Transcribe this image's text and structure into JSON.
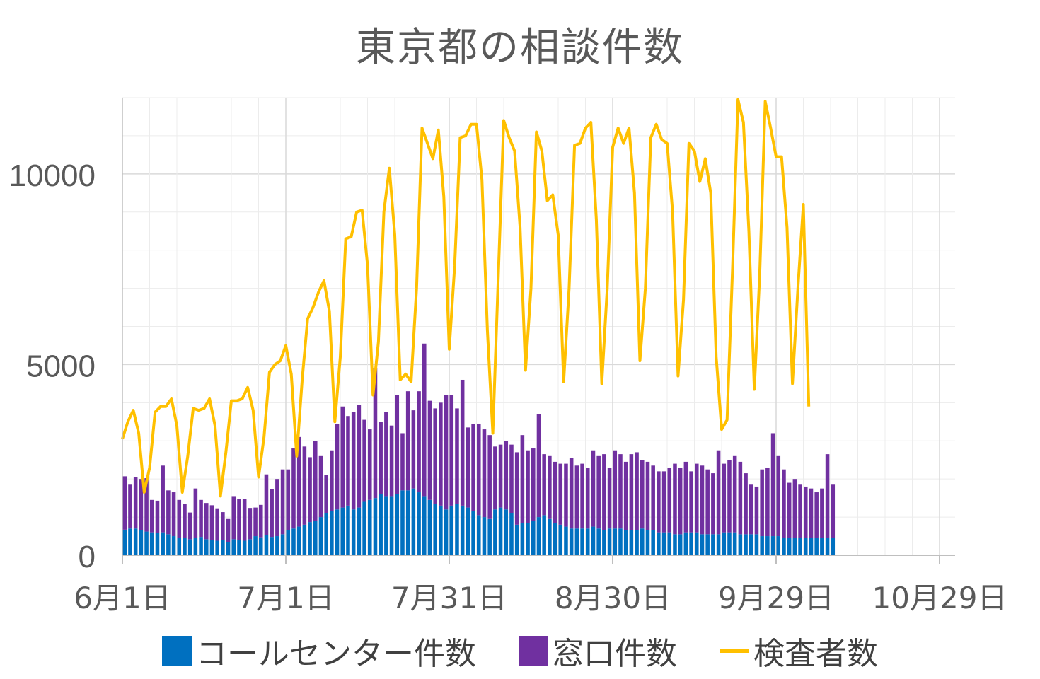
{
  "chart_data": {
    "type": "bar",
    "title": "東京都の相談件数",
    "xlabel": "",
    "ylabel": "",
    "ylim": [
      0,
      12000
    ],
    "y_ticks": [
      "0",
      "5000",
      "10000"
    ],
    "x_tick_labels": [
      "6月1日",
      "7月1日",
      "7月31日",
      "8月30日",
      "9月29日",
      "10月29日"
    ],
    "x_range_days": [
      0,
      150
    ],
    "grid": true,
    "legend_position": "bottom",
    "colors": {
      "call_center": "#0070C0",
      "window": "#7030A0",
      "tested": "#FFC000",
      "grid": "#d9d9d9",
      "minor_grid": "#ececec",
      "axis": "#bfbfbf",
      "text": "#595959"
    },
    "series": [
      {
        "name": "コールセンター件数",
        "kind": "bar",
        "stack": "a",
        "values": [
          670,
          700,
          700,
          650,
          620,
          600,
          580,
          600,
          550,
          500,
          450,
          450,
          420,
          450,
          480,
          420,
          400,
          380,
          400,
          350,
          420,
          400,
          380,
          420,
          500,
          470,
          520,
          480,
          500,
          550,
          650,
          700,
          750,
          800,
          870,
          900,
          1000,
          1100,
          1150,
          1200,
          1250,
          1300,
          1200,
          1250,
          1400,
          1450,
          1500,
          1600,
          1550,
          1550,
          1600,
          1700,
          1700,
          1750,
          1650,
          1550,
          1450,
          1350,
          1300,
          1200,
          1300,
          1350,
          1300,
          1250,
          1150,
          1050,
          1000,
          950,
          1200,
          1250,
          1200,
          1100,
          800,
          850,
          850,
          900,
          1000,
          1050,
          950,
          850,
          800,
          750,
          700,
          700,
          700,
          700,
          750,
          700,
          650,
          700,
          700,
          700,
          650,
          650,
          650,
          700,
          650,
          650,
          600,
          600,
          600,
          550,
          550,
          600,
          600,
          600,
          550,
          550,
          550,
          550,
          600,
          600,
          600,
          550,
          550,
          550,
          550,
          500,
          500,
          500,
          500,
          450,
          450,
          450,
          450,
          450,
          450,
          450,
          450,
          450,
          450
        ]
      },
      {
        "name": "窓口件数",
        "kind": "bar",
        "stack": "a",
        "values": [
          1400,
          1150,
          1350,
          1350,
          1400,
          850,
          850,
          1750,
          1150,
          1150,
          1000,
          900,
          700,
          1300,
          970,
          950,
          910,
          850,
          730,
          600,
          1130,
          1070,
          1090,
          820,
          750,
          850,
          1600,
          1250,
          1500,
          1700,
          1600,
          2100,
          2350,
          2050,
          1700,
          2100,
          1600,
          1000,
          1600,
          2250,
          2650,
          2350,
          2550,
          2700,
          2150,
          1850,
          3400,
          1900,
          2200,
          1850,
          2600,
          1500,
          2600,
          2050,
          2650,
          4000,
          2600,
          2500,
          2700,
          3000,
          2900,
          2500,
          3300,
          2100,
          2300,
          2400,
          2300,
          2200,
          1650,
          1650,
          1800,
          1800,
          1900,
          2300,
          1900,
          1900,
          2700,
          1600,
          1650,
          1600,
          1600,
          1650,
          1850,
          1650,
          1700,
          1600,
          2000,
          1900,
          2000,
          1600,
          2050,
          1950,
          1800,
          2000,
          2050,
          1800,
          1800,
          1700,
          1600,
          1600,
          1700,
          1850,
          1750,
          1850,
          1600,
          1800,
          1800,
          1700,
          1600,
          2200,
          1800,
          1900,
          2000,
          1900,
          1600,
          1300,
          1250,
          1750,
          1800,
          2700,
          2100,
          1800,
          1450,
          1550,
          1400,
          1350,
          1300,
          1200,
          1300,
          2200,
          1400
        ]
      },
      {
        "name": "検査者数",
        "kind": "line",
        "values": [
          3050,
          3500,
          3800,
          3200,
          1650,
          2300,
          3750,
          3900,
          3900,
          4100,
          3400,
          1650,
          2600,
          3850,
          3800,
          3850,
          4100,
          3400,
          1550,
          2700,
          4050,
          4050,
          4100,
          4400,
          3800,
          2050,
          3100,
          4800,
          5000,
          5100,
          5500,
          4750,
          2600,
          4600,
          6200,
          6500,
          6900,
          7200,
          6400,
          3500,
          5200,
          8300,
          8350,
          9000,
          9050,
          7600,
          4200,
          5600,
          9000,
          10150,
          8400,
          4600,
          4750,
          4550,
          7000,
          11200,
          10800,
          10400,
          11150,
          9400,
          5400,
          7600,
          10950,
          11000,
          11300,
          11300,
          9850,
          5900,
          3200,
          7300,
          11400,
          10950,
          10600,
          8600,
          4850,
          7000,
          11100,
          10600,
          9300,
          9450,
          8400,
          4550,
          7000,
          10750,
          10800,
          11200,
          11350,
          8800,
          4500,
          7000,
          10700,
          11200,
          10800,
          11200,
          9500,
          5100,
          7000,
          10950,
          11300,
          10900,
          10800,
          9000,
          4700,
          6700,
          10800,
          10600,
          9800,
          10400,
          9500,
          5200,
          3300,
          3550,
          7500,
          11950,
          11350,
          8500,
          4350,
          7400,
          11900,
          11200,
          10450,
          10450,
          8600,
          4500,
          7000,
          9200,
          3900
        ]
      }
    ]
  }
}
